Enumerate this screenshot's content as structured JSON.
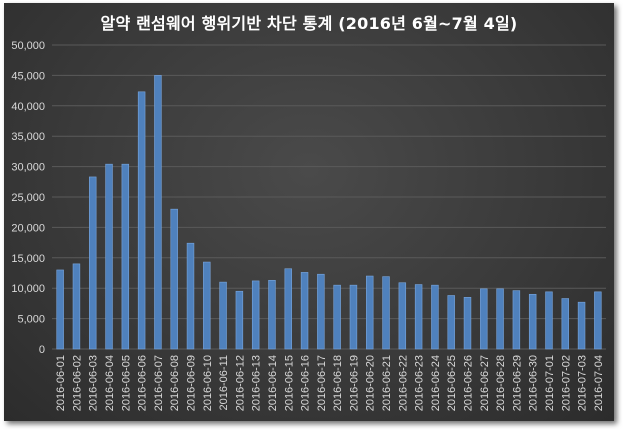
{
  "chart_data": {
    "type": "bar",
    "title": "알약 랜섬웨어 행위기반 차단 통계 (2016년 6월~7월 4일)",
    "categories": [
      "2016-06-01",
      "2016-06-02",
      "2016-06-03",
      "2016-06-04",
      "2016-06-05",
      "2016-06-06",
      "2016-06-07",
      "2016-06-08",
      "2016-06-09",
      "2016-06-10",
      "2016-06-11",
      "2016-06-12",
      "2016-06-13",
      "2016-06-14",
      "2016-06-15",
      "2016-06-16",
      "2016-06-17",
      "2016-06-18",
      "2016-06-19",
      "2016-06-20",
      "2016-06-21",
      "2016-06-22",
      "2016-06-23",
      "2016-06-24",
      "2016-06-25",
      "2016-06-26",
      "2016-06-27",
      "2016-06-28",
      "2016-06-29",
      "2016-06-30",
      "2016-07-01",
      "2016-07-02",
      "2016-07-03",
      "2016-07-04"
    ],
    "values": [
      13000,
      14000,
      28300,
      30400,
      30400,
      42300,
      45000,
      23000,
      17400,
      14300,
      11000,
      9500,
      11200,
      11300,
      13200,
      12600,
      12300,
      10500,
      10500,
      12000,
      11900,
      10900,
      10600,
      10500,
      8800,
      8500,
      9900,
      9900,
      9600,
      9000,
      9400,
      8300,
      7700,
      9400
    ],
    "ylim": [
      0,
      50000
    ],
    "yticks": [
      "0",
      "5,000",
      "10,000",
      "15,000",
      "20,000",
      "25,000",
      "30,000",
      "35,000",
      "40,000",
      "45,000",
      "50,000"
    ],
    "grid": true,
    "legend": "none",
    "colors": {
      "bar": "#4f81bd",
      "bar_highlight": "#7aa6dc",
      "background": "#3a3a3a",
      "gridline": "#5a5a5a",
      "text": "#d9d9d9",
      "title": "#ffffff"
    }
  }
}
